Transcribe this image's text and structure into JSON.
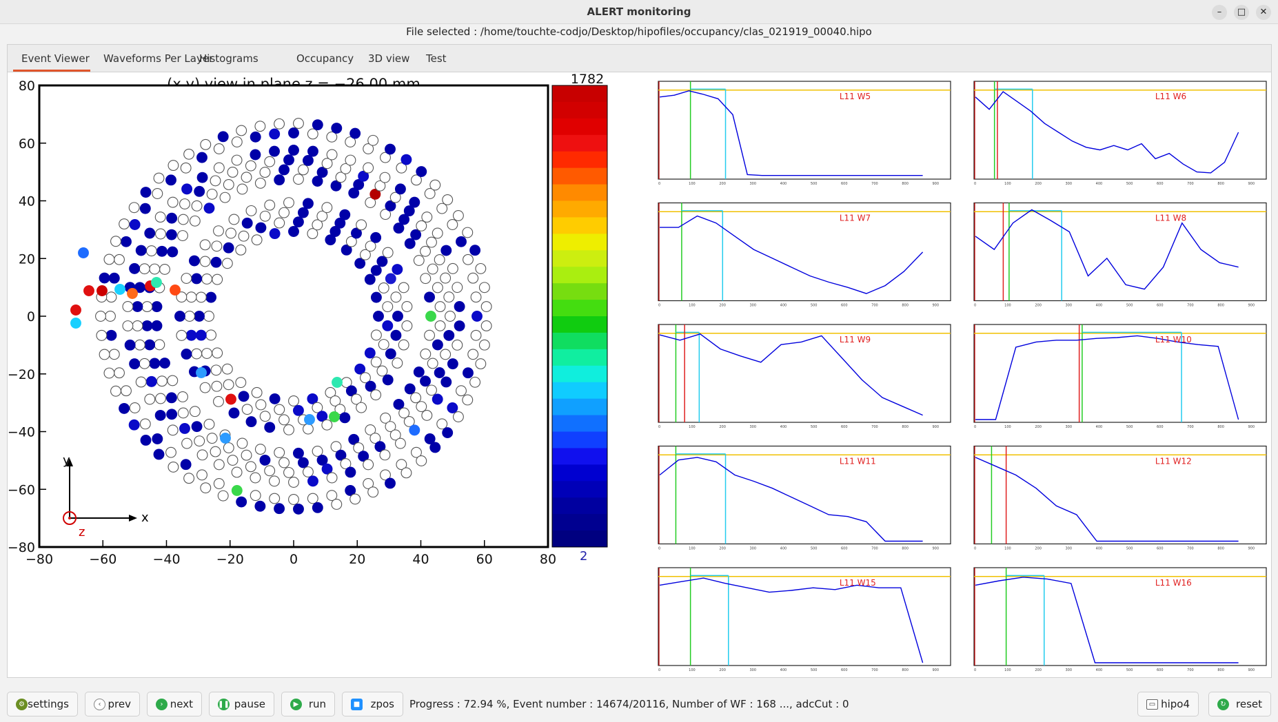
{
  "window": {
    "title": "ALERT monitoring",
    "minimize_icon": "minimize-icon",
    "maximize_icon": "maximize-icon",
    "close_icon": "close-icon"
  },
  "file_selected": "File selected : /home/touchte-codjo/Desktop/hipofiles/occupancy/clas_021919_00040.hipo",
  "tabs": [
    {
      "label": "Event Viewer",
      "active": true
    },
    {
      "label": "Waveforms Per Layer"
    },
    {
      "label": "Histograms"
    },
    {
      "label": "Occupancy"
    },
    {
      "label": "3D view"
    },
    {
      "label": "Test"
    }
  ],
  "event_view": {
    "title": "(x,y) view in plane z = −26.00 mm",
    "x_ticks": [
      "−80",
      "−60",
      "−40",
      "−20",
      "0",
      "20",
      "40",
      "60",
      "80"
    ],
    "y_ticks": [
      "80",
      "60",
      "40",
      "20",
      "0",
      "−20",
      "−40",
      "−60",
      "−80"
    ],
    "axis_labels": {
      "x": "x",
      "y": "y",
      "z": "z"
    },
    "colorbar": {
      "max": "1782",
      "min": "2"
    },
    "colors": {
      "hit": "#0000a8",
      "empty": "#ffffff",
      "axis_z": "#d00000"
    }
  },
  "waveforms": {
    "panels": [
      {
        "label": "L11 W5",
        "trace": [
          0.9,
          0.92,
          0.97,
          0.93,
          0.88,
          0.7,
          0.02,
          0.01,
          0.01,
          0.01,
          0.01,
          0.01,
          0.01,
          0.01,
          0.01,
          0.01,
          0.01,
          0.01,
          0.01
        ]
      },
      {
        "label": "L11 W6",
        "trace": [
          0.9,
          0.76,
          0.96,
          0.85,
          0.74,
          0.6,
          0.5,
          0.4,
          0.33,
          0.3,
          0.35,
          0.3,
          0.37,
          0.2,
          0.26,
          0.14,
          0.05,
          0.04,
          0.16,
          0.5
        ]
      },
      {
        "label": "L11 W7",
        "trace": [
          0.8,
          0.8,
          0.93,
          0.85,
          0.7,
          0.55,
          0.45,
          0.35,
          0.25,
          0.18,
          0.12,
          0.05,
          0.14,
          0.3,
          0.52
        ]
      },
      {
        "label": "L11 W8",
        "trace": [
          0.7,
          0.55,
          0.85,
          1.0,
          0.88,
          0.75,
          0.25,
          0.45,
          0.15,
          0.1,
          0.35,
          0.85,
          0.55,
          0.4,
          0.35
        ]
      },
      {
        "label": "L11 W9",
        "trace": [
          0.96,
          0.9,
          0.97,
          0.8,
          0.72,
          0.65,
          0.85,
          0.88,
          0.95,
          0.7,
          0.45,
          0.25,
          0.15,
          0.05
        ]
      },
      {
        "label": "L11 W10",
        "trace": [
          0.0,
          0.0,
          0.82,
          0.88,
          0.9,
          0.9,
          0.92,
          0.93,
          0.95,
          0.92,
          0.88,
          0.85,
          0.83,
          0.0
        ]
      },
      {
        "label": "L11 W11",
        "trace": [
          0.75,
          0.92,
          0.95,
          0.9,
          0.75,
          0.68,
          0.6,
          0.5,
          0.4,
          0.3,
          0.28,
          0.22,
          0.0,
          0.0,
          0.0
        ]
      },
      {
        "label": "L11 W12",
        "trace": [
          0.95,
          0.85,
          0.75,
          0.6,
          0.4,
          0.3,
          0.0,
          0.0,
          0.0,
          0.0,
          0.0,
          0.0,
          0.0,
          0.0
        ]
      },
      {
        "label": "L11 W15",
        "trace": [
          0.88,
          0.92,
          0.96,
          0.9,
          0.85,
          0.8,
          0.82,
          0.85,
          0.83,
          0.88,
          0.85,
          0.85,
          0.0
        ]
      },
      {
        "label": "L11 W16",
        "trace": [
          0.88,
          0.93,
          0.97,
          0.95,
          0.9,
          0.0,
          0.0,
          0.0,
          0.0,
          0.0,
          0.0,
          0.0
        ]
      }
    ]
  },
  "bottom": {
    "buttons": [
      {
        "label": "settings",
        "icon": "settings-icon",
        "color": "#6b8e23"
      },
      {
        "label": "prev",
        "icon": "chevron-left-icon",
        "color": "#888888"
      },
      {
        "label": "next",
        "icon": "chevron-right-icon",
        "color": "#2eaa4a"
      },
      {
        "label": "pause",
        "icon": "pause-icon",
        "color": "#2eaa4a"
      },
      {
        "label": "run",
        "icon": "play-icon",
        "color": "#2eaa4a"
      },
      {
        "label": "zpos",
        "icon": "cube-icon",
        "color": "#1e90ff"
      }
    ],
    "progress": "Progress : 72.94 %, Event number : 14674/20116, Number of WF : 168 ..., adcCut : 0",
    "right_buttons": [
      {
        "label": "hipo4",
        "icon": "folder-icon"
      },
      {
        "label": "reset",
        "icon": "reset-icon",
        "color": "#2eaa4a"
      }
    ]
  }
}
